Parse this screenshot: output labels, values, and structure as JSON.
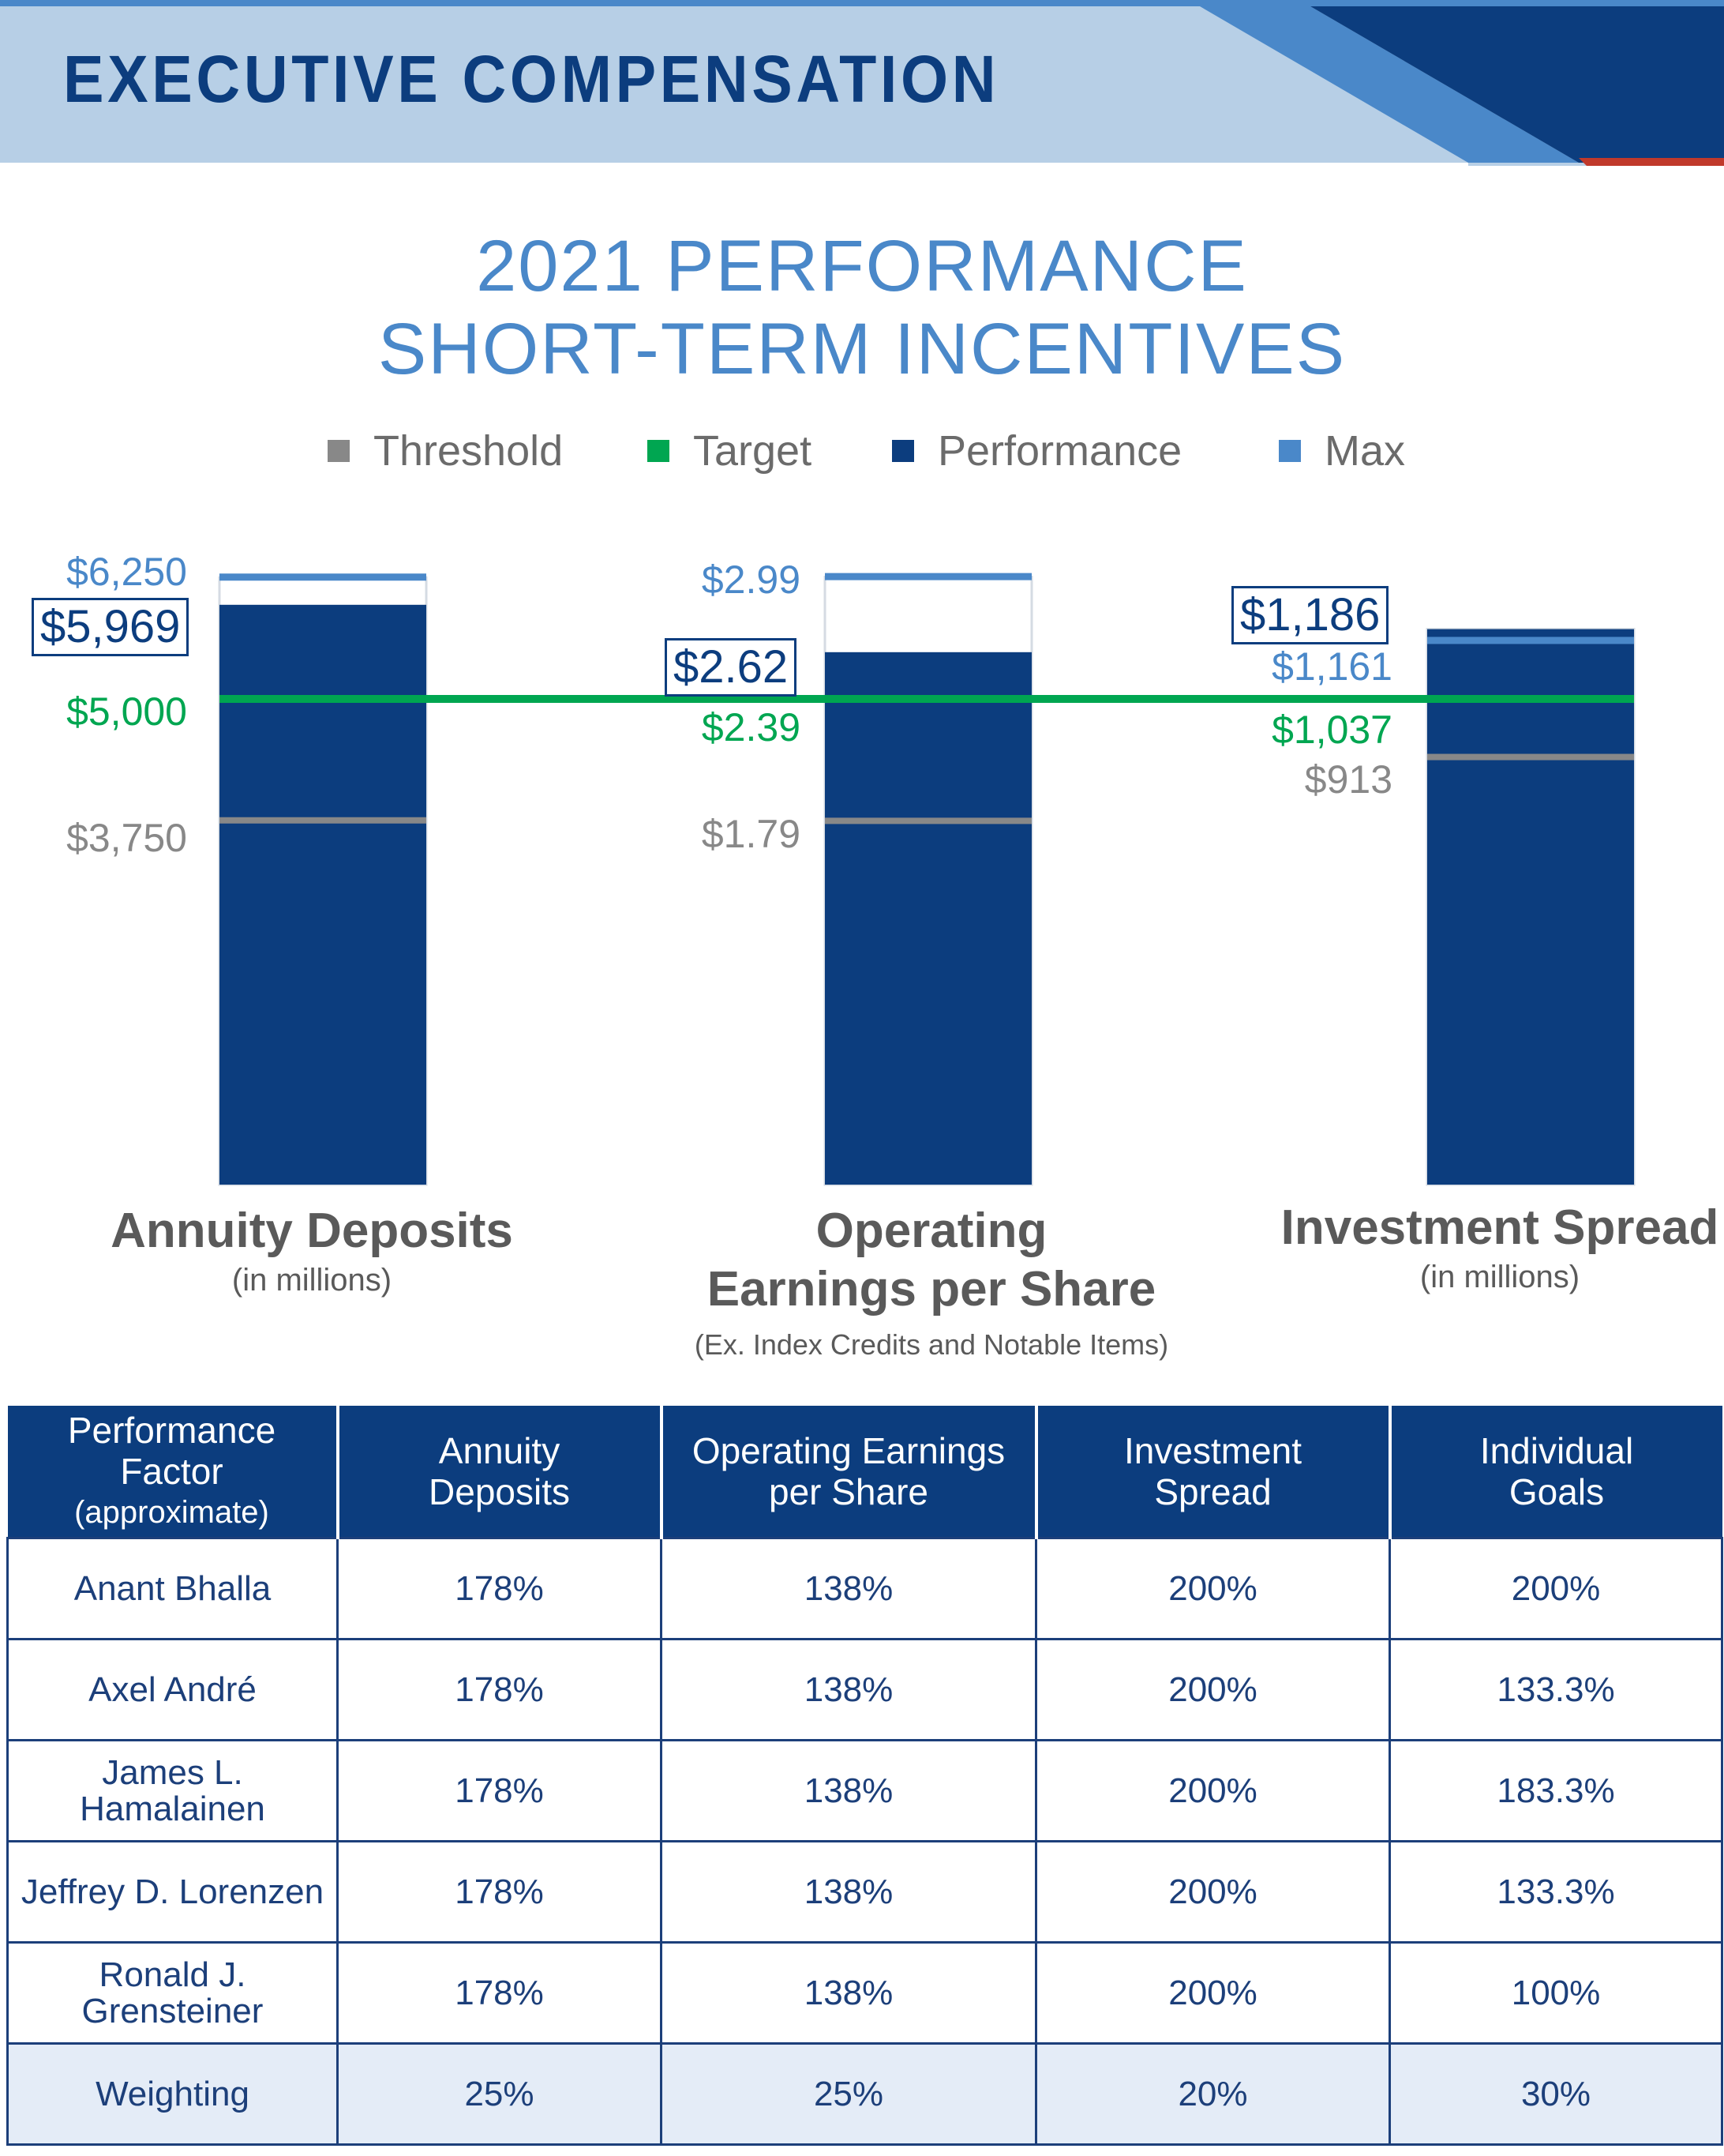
{
  "header": {
    "title": "EXECUTIVE COMPENSATION",
    "colors": {
      "light": "#b7cfe6",
      "mid": "#4a88c9",
      "dark": "#0c3d7e",
      "accent_red": "#c0392b"
    }
  },
  "titles": {
    "line1": "2021 PERFORMANCE",
    "line2": "SHORT-TERM INCENTIVES"
  },
  "chart_data": {
    "type": "bar",
    "title": "2021 PERFORMANCE SHORT-TERM INCENTIVES",
    "legend": [
      {
        "name": "Threshold",
        "color": "#888888"
      },
      {
        "name": "Target",
        "color": "#00a651"
      },
      {
        "name": "Performance",
        "color": "#0c3d7e"
      },
      {
        "name": "Max",
        "color": "#4a88c9"
      }
    ],
    "categories": [
      {
        "label": "Annuity Deposits",
        "sublabel": "(in millions)",
        "note": "",
        "threshold": 3750,
        "target": 5000,
        "performance": 5969,
        "max": 6250,
        "threshold_label": "$3,750",
        "target_label": "$5,000",
        "performance_label": "$5,969",
        "max_label": "$6,250"
      },
      {
        "label": "Operating Earnings per Share",
        "label_lines": [
          "Operating",
          "Earnings per Share"
        ],
        "sublabel": "",
        "note": "(Ex. Index Credits and Notable Items)",
        "threshold": 1.79,
        "target": 2.39,
        "performance": 2.62,
        "max": 2.99,
        "threshold_label": "$1.79",
        "target_label": "$2.39",
        "performance_label": "$2.62",
        "max_label": "$2.99"
      },
      {
        "label": "Investment Spread",
        "sublabel": "(in millions)",
        "note": "",
        "threshold": 913,
        "target": 1037,
        "performance": 1186,
        "max": 1161,
        "threshold_label": "$913",
        "target_label": "$1,037",
        "performance_label": "$1,186",
        "max_label": "$1,161"
      }
    ]
  },
  "table": {
    "headers": [
      {
        "main": "Performance Factor",
        "sub": "(approximate)"
      },
      {
        "main": "Annuity Deposits",
        "sub": ""
      },
      {
        "main": "Operating Earnings per Share",
        "sub": ""
      },
      {
        "main": "Investment Spread",
        "sub": ""
      },
      {
        "main": "Individual Goals",
        "sub": ""
      }
    ],
    "rows": [
      [
        "Anant Bhalla",
        "178%",
        "138%",
        "200%",
        "200%"
      ],
      [
        "Axel André",
        "178%",
        "138%",
        "200%",
        "133.3%"
      ],
      [
        "James L. Hamalainen",
        "178%",
        "138%",
        "200%",
        "183.3%"
      ],
      [
        "Jeffrey D. Lorenzen",
        "178%",
        "138%",
        "200%",
        "133.3%"
      ],
      [
        "Ronald J. Grensteiner",
        "178%",
        "138%",
        "200%",
        "100%"
      ]
    ],
    "weighting": [
      "Weighting",
      "25%",
      "25%",
      "20%",
      "30%"
    ]
  }
}
